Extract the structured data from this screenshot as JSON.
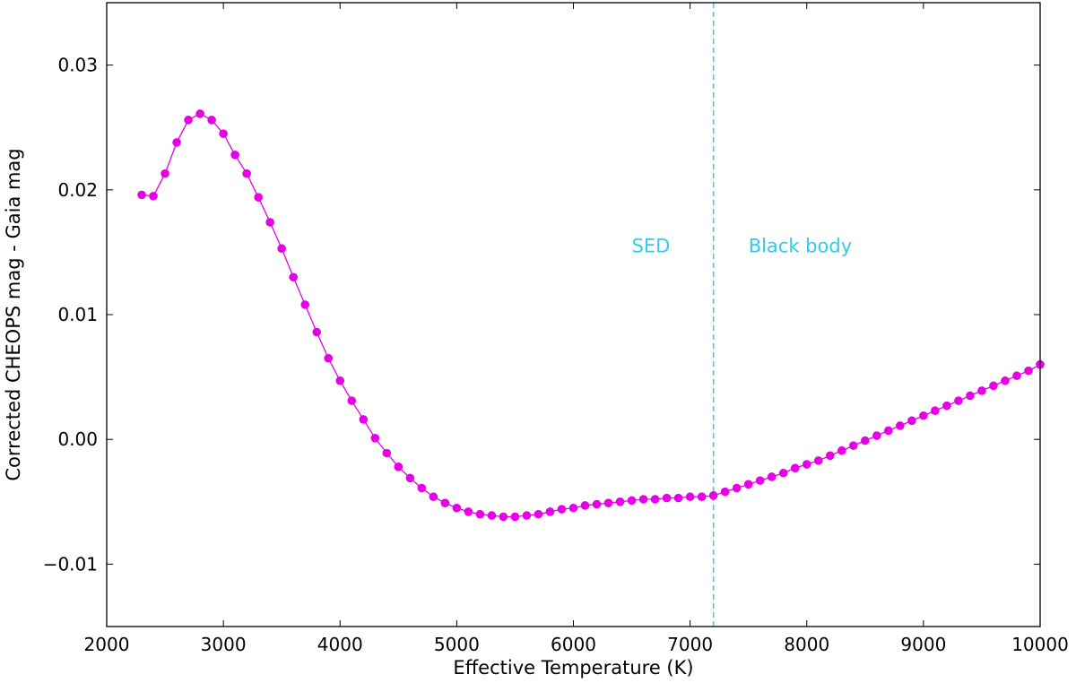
{
  "chart_data": {
    "type": "line",
    "title": "",
    "xlabel": "Effective Temperature (K)",
    "ylabel": "Corrected CHEOPS mag - Gaia mag",
    "xlim": [
      2000,
      10000
    ],
    "ylim": [
      -0.015,
      0.035
    ],
    "xticks": [
      2000,
      3000,
      4000,
      5000,
      6000,
      7000,
      8000,
      9000,
      10000
    ],
    "yticks": [
      -0.01,
      0.0,
      0.01,
      0.02,
      0.03
    ],
    "xtick_labels": [
      "2000",
      "3000",
      "4000",
      "5000",
      "6000",
      "7000",
      "8000",
      "9000",
      "10000"
    ],
    "ytick_labels": [
      "−0.01",
      "0.00",
      "0.01",
      "0.02",
      "0.03"
    ],
    "grid": false,
    "series_color": "#e600e6",
    "annotation_color": "#33ccee",
    "vline_x": 7200,
    "annotations": [
      {
        "text": "SED",
        "x": 6500,
        "y": 0.0155
      },
      {
        "text": "Black body",
        "x": 7500,
        "y": 0.0155
      }
    ],
    "series": [
      {
        "x": [
          2300,
          2400,
          2500,
          2600,
          2700,
          2800,
          2900,
          3000,
          3100,
          3200,
          3300,
          3400,
          3500,
          3600,
          3700,
          3800,
          3900,
          4000,
          4100,
          4200,
          4300,
          4400,
          4500,
          4600,
          4700,
          4800,
          4900,
          5000,
          5100,
          5200,
          5300,
          5400,
          5500,
          5600,
          5700,
          5800,
          5900,
          6000,
          6100,
          6200,
          6300,
          6400,
          6500,
          6600,
          6700,
          6800,
          6900,
          7000,
          7100,
          7200,
          7300,
          7400,
          7500,
          7600,
          7700,
          7800,
          7900,
          8000,
          8100,
          8200,
          8300,
          8400,
          8500,
          8600,
          8700,
          8800,
          8900,
          9000,
          9100,
          9200,
          9300,
          9400,
          9500,
          9600,
          9700,
          9800,
          9900,
          10000
        ],
        "values": [
          0.0196,
          0.0195,
          0.0213,
          0.0238,
          0.0256,
          0.0261,
          0.0256,
          0.0245,
          0.0228,
          0.0213,
          0.0194,
          0.0174,
          0.0153,
          0.013,
          0.0108,
          0.0086,
          0.0065,
          0.0047,
          0.0031,
          0.0016,
          0.0001,
          -0.0011,
          -0.0022,
          -0.0031,
          -0.0039,
          -0.0046,
          -0.0051,
          -0.0055,
          -0.0058,
          -0.006,
          -0.0061,
          -0.0062,
          -0.0062,
          -0.0061,
          -0.006,
          -0.0058,
          -0.0056,
          -0.0055,
          -0.0053,
          -0.0052,
          -0.0051,
          -0.005,
          -0.0049,
          -0.0048,
          -0.0048,
          -0.0047,
          -0.0047,
          -0.0046,
          -0.0046,
          -0.0045,
          -0.0042,
          -0.0039,
          -0.0036,
          -0.0033,
          -0.003,
          -0.0027,
          -0.0023,
          -0.002,
          -0.0017,
          -0.0013,
          -0.0009,
          -0.0005,
          -0.0001,
          0.0003,
          0.0007,
          0.0011,
          0.0015,
          0.0019,
          0.0023,
          0.0027,
          0.0031,
          0.0035,
          0.0039,
          0.0043,
          0.0047,
          0.0051,
          0.0055,
          0.006
        ]
      }
    ]
  }
}
